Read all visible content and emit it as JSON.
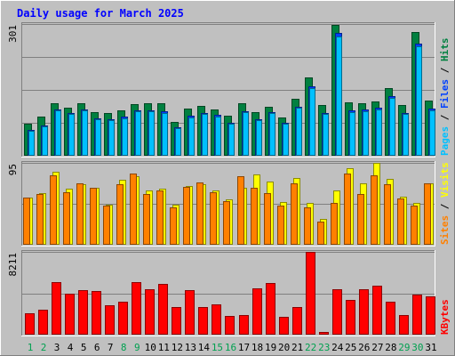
{
  "chart_data": {
    "type": "bar",
    "title": "Daily usage for March 2025",
    "categories": [
      "1",
      "2",
      "3",
      "4",
      "5",
      "6",
      "7",
      "8",
      "9",
      "10",
      "11",
      "12",
      "13",
      "14",
      "15",
      "16",
      "17",
      "18",
      "19",
      "20",
      "21",
      "22",
      "23",
      "24",
      "25",
      "26",
      "27",
      "28",
      "29",
      "30",
      "31"
    ],
    "weekend_days": [
      "1",
      "2",
      "8",
      "9",
      "15",
      "16",
      "22",
      "23",
      "29",
      "30"
    ],
    "panels": [
      {
        "id": "pages_files_hits",
        "axis_max_label": "301",
        "ymax": 301,
        "right_label_parts": [
          {
            "text": "Pages",
            "color": "#00C0FF"
          },
          {
            "text": " / ",
            "color": "#000000"
          },
          {
            "text": "Files",
            "color": "#0040FF"
          },
          {
            "text": " / ",
            "color": "#000000"
          },
          {
            "text": "Hits",
            "color": "#008040"
          }
        ],
        "series": [
          {
            "name": "Hits",
            "color": "#008040",
            "values": [
              74,
              90,
              120,
              110,
              120,
              100,
              98,
              103,
              118,
              119,
              119,
              78,
              107,
              113,
              106,
              92,
              120,
              99,
              112,
              87,
              130,
              178,
              115,
              298,
              123,
              120,
              124,
              155,
              116,
              282,
              126
            ]
          },
          {
            "name": "Files",
            "color": "#0040FF",
            "values": [
              59,
              70,
              106,
              97,
              106,
              86,
              84,
              89,
              104,
              104,
              101,
              65,
              91,
              98,
              93,
              76,
              102,
              84,
              100,
              75,
              112,
              158,
              98,
              280,
              104,
              106,
              109,
              136,
              98,
              257,
              108
            ]
          },
          {
            "name": "Pages",
            "color": "#00C0FF",
            "values": [
              57,
              68,
              104,
              95,
              103,
              84,
              81,
              86,
              102,
              102,
              98,
              63,
              88,
              95,
              90,
              73,
              99,
              81,
              97,
              73,
              109,
              154,
              95,
              273,
              100,
              102,
              105,
              132,
              95,
              251,
              104
            ]
          }
        ]
      },
      {
        "id": "visits_sites",
        "axis_max_label": "95",
        "ymax": 95,
        "right_label_parts": [
          {
            "text": "Sites",
            "color": "#FF8000"
          },
          {
            "text": " / ",
            "color": "#000000"
          },
          {
            "text": "Visits",
            "color": "#FFFF00"
          }
        ],
        "series": [
          {
            "name": "Visits",
            "color": "#FFFF00",
            "values": [
              55,
              60,
              85,
              65,
              70,
              66,
              46,
              75,
              79,
              63,
              65,
              46,
              68,
              70,
              63,
              53,
              66,
              82,
              73,
              50,
              77,
              49,
              30,
              63,
              89,
              71,
              95,
              76,
              56,
              49,
              71
            ]
          },
          {
            "name": "Sites",
            "color": "#FF8000",
            "values": [
              55,
              59,
              81,
              61,
              71,
              66,
              45,
              70,
              83,
              59,
              63,
              43,
              67,
              72,
              61,
              51,
              79,
              66,
              60,
              45,
              71,
              43,
              27,
              49,
              83,
              59,
              81,
              70,
              54,
              45,
              71
            ]
          }
        ]
      },
      {
        "id": "kbytes",
        "axis_max_label": "8211",
        "ymax": 8211,
        "right_label_parts": [
          {
            "text": "KBytes",
            "color": "#FF0000"
          }
        ],
        "series": [
          {
            "name": "KBytes",
            "color": "#FF0000",
            "values": [
              2130,
              2440,
              5170,
              4060,
              4390,
              4360,
              2890,
              3260,
              5170,
              4530,
              5010,
              2710,
              4440,
              2700,
              3040,
              1850,
              1910,
              4610,
              5140,
              1760,
              2710,
              8211,
              280,
              4510,
              3480,
              4530,
              4860,
              3280,
              1960,
              3990,
              3820
            ]
          }
        ]
      }
    ]
  }
}
